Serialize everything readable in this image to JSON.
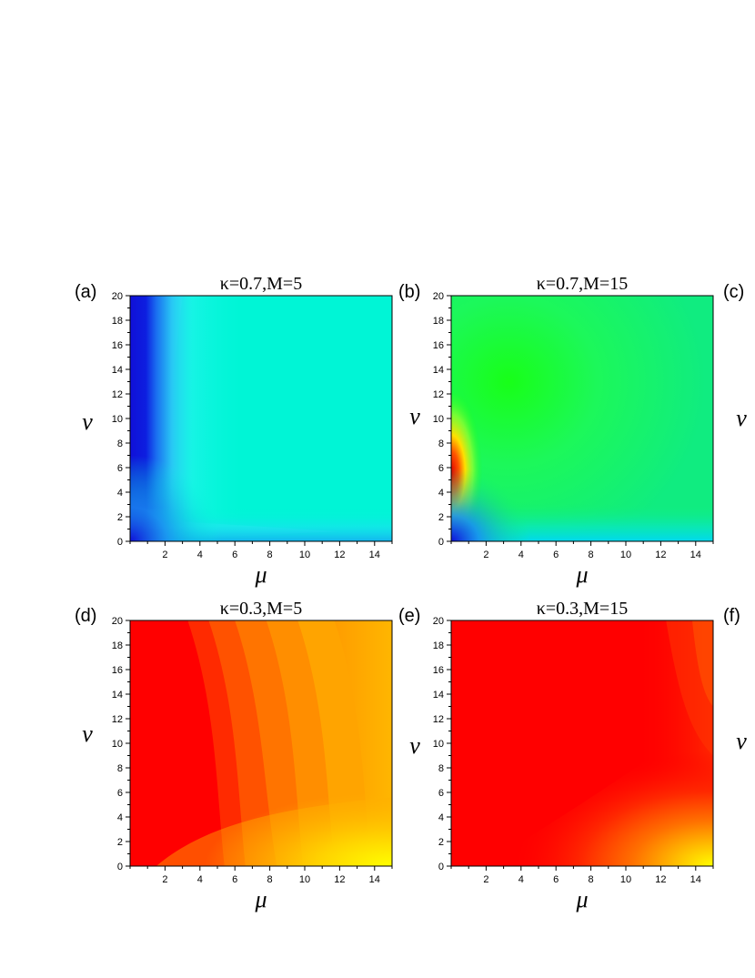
{
  "chart_data": [
    {
      "type": "heatmap",
      "panel_label": "(a)",
      "title": "κ=0.7,M=5",
      "xlabel": "μ",
      "ylabel": "ν",
      "xlim": [
        0,
        15
      ],
      "ylim": [
        0,
        20
      ],
      "xticks": [
        2,
        4,
        6,
        8,
        10,
        12,
        14
      ],
      "yticks": [
        0,
        2,
        4,
        6,
        8,
        10,
        12,
        14,
        16,
        18,
        20
      ],
      "colors": {
        "base": "#00f5d6",
        "edge_stripe": "#1414dc",
        "edge_fade": "#3fd3f2",
        "bottom_band": "#12c0ea"
      }
    },
    {
      "type": "heatmap",
      "panel_label": "(b)",
      "title": "κ=0.7,M=15",
      "xlabel": "μ",
      "ylabel": "ν",
      "xlim": [
        0,
        15
      ],
      "ylim": [
        0,
        20
      ],
      "xticks": [
        2,
        4,
        6,
        8,
        10,
        12,
        14
      ],
      "yticks": [
        0,
        2,
        4,
        6,
        8,
        10,
        12,
        14,
        16,
        18,
        20
      ],
      "colors": {
        "base": "#12ee72",
        "green_zone": "#16ff16",
        "hot_spot": "#e00000",
        "yellow_ring": "#ffe000",
        "bottom_band": "#00d6ee",
        "corner": "#1414dc"
      }
    },
    {
      "type": "heatmap",
      "panel_label": "(d)",
      "title": "κ=0.3,M=5",
      "xlabel": "μ",
      "ylabel": "ν",
      "xlim": [
        0,
        15
      ],
      "ylim": [
        0,
        20
      ],
      "xticks": [
        2,
        4,
        6,
        8,
        10,
        12,
        14
      ],
      "yticks": [
        0,
        2,
        4,
        6,
        8,
        10,
        12,
        14,
        16,
        18,
        20
      ],
      "colors": {
        "base": "#ff0000",
        "mid": "#ff7000",
        "right": "#ffb300",
        "bottom_right": "#ffff00"
      }
    },
    {
      "type": "heatmap",
      "panel_label": "(e)",
      "title": "κ=0.3,M=15",
      "xlabel": "μ",
      "ylabel": "ν",
      "xlim": [
        0,
        15
      ],
      "ylim": [
        0,
        20
      ],
      "xticks": [
        2,
        4,
        6,
        8,
        10,
        12,
        14
      ],
      "yticks": [
        0,
        2,
        4,
        6,
        8,
        10,
        12,
        14,
        16,
        18,
        20
      ],
      "colors": {
        "base": "#ff0000",
        "mid": "#ff4a00",
        "bottom_right": "#ffff00"
      }
    }
  ],
  "extra_labels": [
    {
      "panel_label": "(c)",
      "ylabel": "ν"
    },
    {
      "panel_label": "(f)",
      "ylabel": "ν"
    }
  ]
}
